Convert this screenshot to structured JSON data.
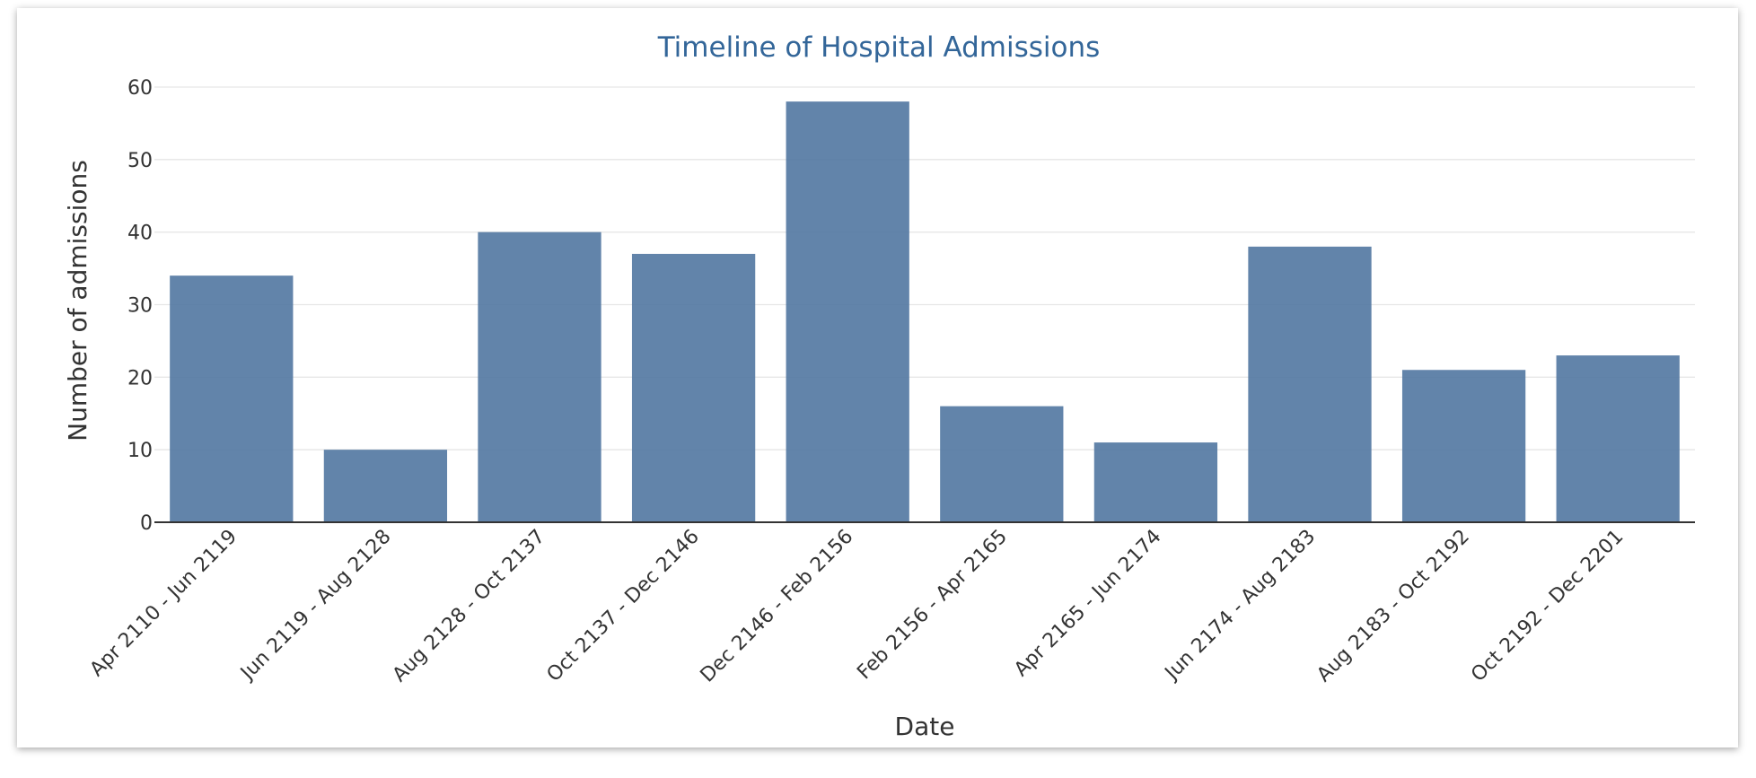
{
  "chart_data": {
    "type": "bar",
    "title": "Timeline of Hospital Admissions",
    "xlabel": "Date",
    "ylabel": "Number of admissions",
    "categories": [
      "Apr 2110 - Jun 2119",
      "Jun 2119 - Aug 2128",
      "Aug 2128 - Oct 2137",
      "Oct 2137 - Dec 2146",
      "Dec 2146 - Feb 2156",
      "Feb 2156 - Apr 2165",
      "Apr 2165 - Jun 2174",
      "Jun 2174 - Aug 2183",
      "Aug 2183 - Oct 2192",
      "Oct 2192 - Dec 2201"
    ],
    "values": [
      34,
      10,
      40,
      37,
      58,
      16,
      11,
      38,
      21,
      23
    ],
    "ylim": [
      0,
      60
    ],
    "yticks": [
      0,
      10,
      20,
      30,
      40,
      50,
      60
    ],
    "grid": true,
    "bar_color": "#5579a3",
    "title_color": "#336699"
  }
}
